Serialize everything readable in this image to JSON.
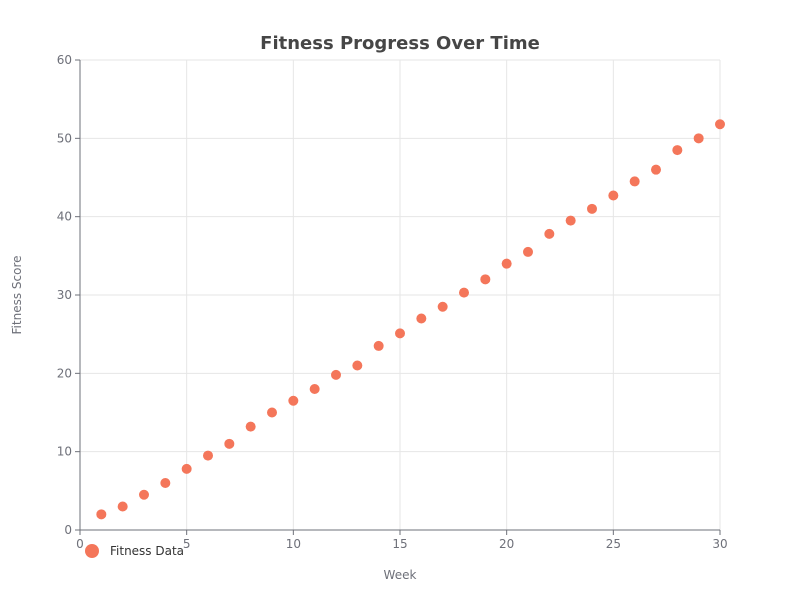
{
  "chart_data": {
    "type": "scatter",
    "title": "Fitness Progress Over Time",
    "xlabel": "Week",
    "ylabel": "Fitness Score",
    "xlim": [
      0,
      30
    ],
    "ylim": [
      0,
      60
    ],
    "x_ticks": [
      0,
      5,
      10,
      15,
      20,
      25,
      30
    ],
    "y_ticks": [
      0,
      10,
      20,
      30,
      40,
      50,
      60
    ],
    "grid": true,
    "legend_position": "bottom-left",
    "series": [
      {
        "name": "Fitness Data",
        "color": "#f4765a",
        "points": [
          [
            1,
            2
          ],
          [
            2,
            3
          ],
          [
            3,
            4.5
          ],
          [
            4,
            6
          ],
          [
            5,
            7.8
          ],
          [
            6,
            9.5
          ],
          [
            7,
            11
          ],
          [
            8,
            13.2
          ],
          [
            9,
            15
          ],
          [
            10,
            16.5
          ],
          [
            11,
            18
          ],
          [
            12,
            19.8
          ],
          [
            13,
            21
          ],
          [
            14,
            23.5
          ],
          [
            15,
            25.1
          ],
          [
            16,
            27
          ],
          [
            17,
            28.5
          ],
          [
            18,
            30.3
          ],
          [
            19,
            32
          ],
          [
            20,
            34
          ],
          [
            21,
            35.5
          ],
          [
            22,
            37.8
          ],
          [
            23,
            39.5
          ],
          [
            24,
            41
          ],
          [
            25,
            42.7
          ],
          [
            26,
            44.5
          ],
          [
            27,
            46
          ],
          [
            28,
            48.5
          ],
          [
            29,
            50
          ],
          [
            30,
            51.8
          ]
        ]
      }
    ]
  }
}
